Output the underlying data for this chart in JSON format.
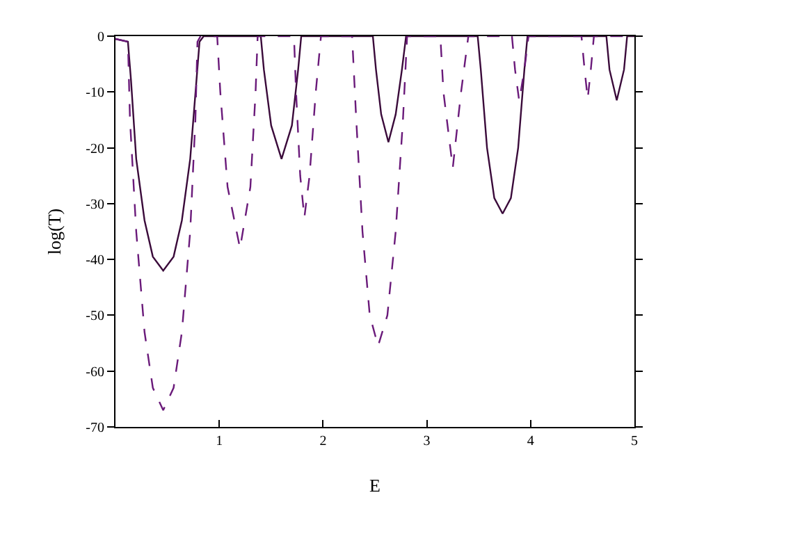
{
  "chart_data": {
    "type": "line",
    "xlabel": "E",
    "ylabel": "log(T)",
    "xlim": [
      0,
      5
    ],
    "xticks": [
      1,
      2,
      3,
      4,
      5
    ],
    "ylim": [
      -70,
      0
    ],
    "yticks": [
      -70,
      -60,
      -50,
      -40,
      -30,
      -20,
      -10,
      0
    ],
    "series": [
      {
        "color": "#3a0a3a",
        "line_style": "solid",
        "x": [
          0,
          0.12,
          0.15,
          0.2,
          0.28,
          0.36,
          0.46,
          0.56,
          0.64,
          0.72,
          0.78,
          0.81,
          0.85,
          1.4,
          1.43,
          1.5,
          1.6,
          1.7,
          1.76,
          1.79,
          2.48,
          2.51,
          2.56,
          2.63,
          2.7,
          2.76,
          2.8,
          3.49,
          3.52,
          3.58,
          3.65,
          3.73,
          3.81,
          3.88,
          3.94,
          3.97,
          4.73,
          4.76,
          4.83,
          4.9,
          4.93,
          5
        ],
        "values": [
          -0.5,
          -1,
          -8,
          -22,
          -33,
          -39.5,
          -42,
          -39.5,
          -33,
          -22,
          -8,
          -1,
          0,
          0,
          -6,
          -16,
          -22,
          -16,
          -6,
          0,
          0,
          -6,
          -14,
          -19,
          -14,
          -6,
          0,
          0,
          -6,
          -20,
          -29,
          -31.8,
          -29,
          -20,
          -6,
          0,
          0,
          -6,
          -11.5,
          -6,
          0,
          0
        ]
      },
      {
        "color": "#6a1a7a",
        "line_style": "dashed",
        "x": [
          0,
          0.12,
          0.14,
          0.2,
          0.28,
          0.36,
          0.46,
          0.56,
          0.64,
          0.72,
          0.77,
          0.79,
          0.82,
          0.98,
          1.01,
          1.08,
          1.2,
          1.3,
          1.35,
          1.37,
          1.72,
          1.74,
          1.78,
          1.82,
          1.87,
          1.93,
          1.98,
          2.28,
          2.32,
          2.38,
          2.45,
          2.53,
          2.62,
          2.7,
          2.77,
          2.81,
          3.13,
          3.16,
          3.25,
          3.33,
          3.4,
          3.82,
          3.85,
          3.89,
          3.94,
          3.98,
          4.49,
          4.52,
          4.55,
          4.58,
          4.61,
          5
        ],
        "values": [
          -0.5,
          -1,
          -15,
          -35,
          -53,
          -63,
          -67,
          -63,
          -53,
          -35,
          -15,
          -1,
          0,
          0,
          -10,
          -27,
          -38,
          -27,
          -10,
          0,
          0,
          -10,
          -25,
          -32.5,
          -25,
          -10,
          0,
          0,
          -15,
          -35,
          -50,
          -55.5,
          -50,
          -35,
          -15,
          0,
          0,
          -10,
          -23.6,
          -10,
          0,
          0,
          -6,
          -11.6,
          -6,
          0,
          0,
          -6,
          -11.2,
          -6,
          0,
          0
        ]
      }
    ]
  }
}
